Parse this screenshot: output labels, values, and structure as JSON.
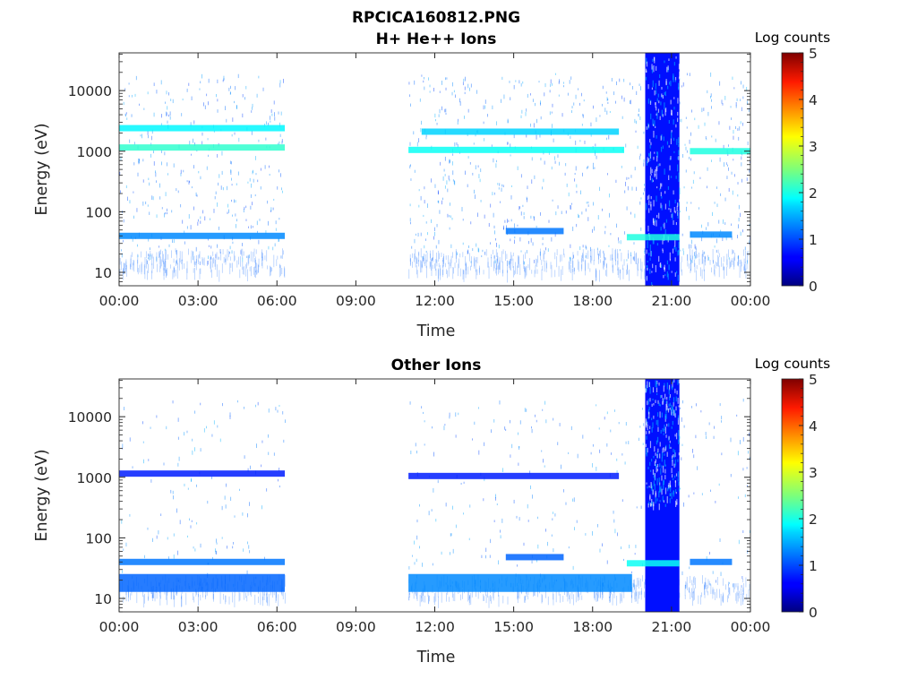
{
  "figure": {
    "title_line1": "RPCICA160812.PNG"
  },
  "chart_data": [
    {
      "type": "heatmap",
      "title": "H+ He++ Ions",
      "xlabel": "Time",
      "ylabel": "Energy (eV)",
      "x_ticks": [
        "00:00",
        "03:00",
        "06:00",
        "09:00",
        "12:00",
        "15:00",
        "18:00",
        "21:00",
        "00:00"
      ],
      "y_ticks": [
        {
          "value": 10,
          "label": "10"
        },
        {
          "value": 100,
          "label": "100"
        },
        {
          "value": 1000,
          "label": "1000"
        },
        {
          "value": 10000,
          "label": "10000"
        }
      ],
      "y_scale": "log",
      "xlim_hours": [
        0,
        24
      ],
      "ylim": [
        6,
        42000
      ],
      "colorbar": {
        "title": "Log counts",
        "ticks": [
          "0",
          "1",
          "2",
          "3",
          "4",
          "5"
        ],
        "range": [
          0,
          5
        ],
        "colormap": "jet"
      },
      "data_segments": [
        {
          "start_hour": 0.0,
          "end_hour": 6.3
        },
        {
          "start_hour": 11.0,
          "end_hour": 24.0
        }
      ],
      "bands": [
        {
          "start_hour": 0.0,
          "end_hour": 6.3,
          "energy": 40,
          "level": 1.0
        },
        {
          "start_hour": 0.0,
          "end_hour": 6.3,
          "energy": 1150,
          "level": 1.9
        },
        {
          "start_hour": 0.0,
          "end_hour": 6.3,
          "energy": 2400,
          "level": 1.6
        },
        {
          "start_hour": 11.0,
          "end_hour": 19.2,
          "energy": 1050,
          "level": 1.7
        },
        {
          "start_hour": 11.5,
          "end_hour": 19.0,
          "energy": 2100,
          "level": 1.4
        },
        {
          "start_hour": 14.7,
          "end_hour": 16.9,
          "energy": 48,
          "level": 0.9
        },
        {
          "start_hour": 19.3,
          "end_hour": 21.3,
          "energy": 38,
          "level": 1.8
        },
        {
          "start_hour": 21.7,
          "end_hour": 23.3,
          "energy": 42,
          "level": 1.0
        },
        {
          "start_hour": 21.7,
          "end_hour": 24.0,
          "energy": 1000,
          "level": 1.8
        }
      ],
      "burst": {
        "start_hour": 20.0,
        "end_hour": 21.3,
        "level": 0.5
      }
    },
    {
      "type": "heatmap",
      "title": "Other Ions",
      "xlabel": "Time",
      "ylabel": "Energy (eV)",
      "x_ticks": [
        "00:00",
        "03:00",
        "06:00",
        "09:00",
        "12:00",
        "15:00",
        "18:00",
        "21:00",
        "00:00"
      ],
      "y_ticks": [
        {
          "value": 10,
          "label": "10"
        },
        {
          "value": 100,
          "label": "100"
        },
        {
          "value": 1000,
          "label": "1000"
        },
        {
          "value": 10000,
          "label": "10000"
        }
      ],
      "y_scale": "log",
      "xlim_hours": [
        0,
        24
      ],
      "ylim": [
        6,
        42000
      ],
      "colorbar": {
        "title": "Log counts",
        "ticks": [
          "0",
          "1",
          "2",
          "3",
          "4",
          "5"
        ],
        "range": [
          0,
          5
        ],
        "colormap": "jet"
      },
      "data_segments": [
        {
          "start_hour": 0.0,
          "end_hour": 6.3
        },
        {
          "start_hour": 11.0,
          "end_hour": 24.0
        }
      ],
      "bands": [
        {
          "start_hour": 0.0,
          "end_hour": 6.3,
          "energy": 40,
          "level": 0.9
        },
        {
          "start_hour": 0.0,
          "end_hour": 6.3,
          "energy": 18,
          "level": 0.8
        },
        {
          "start_hour": 0.0,
          "end_hour": 6.3,
          "energy": 1150,
          "level": 0.4
        },
        {
          "start_hour": 11.0,
          "end_hour": 19.5,
          "energy": 18,
          "level": 1.0
        },
        {
          "start_hour": 11.0,
          "end_hour": 19.0,
          "energy": 1050,
          "level": 0.4
        },
        {
          "start_hour": 14.7,
          "end_hour": 16.9,
          "energy": 48,
          "level": 0.8
        },
        {
          "start_hour": 19.3,
          "end_hour": 21.3,
          "energy": 38,
          "level": 1.7
        },
        {
          "start_hour": 21.7,
          "end_hour": 23.3,
          "energy": 40,
          "level": 0.9
        }
      ],
      "burst": {
        "start_hour": 20.0,
        "end_hour": 21.3,
        "level": 0.5
      }
    }
  ]
}
